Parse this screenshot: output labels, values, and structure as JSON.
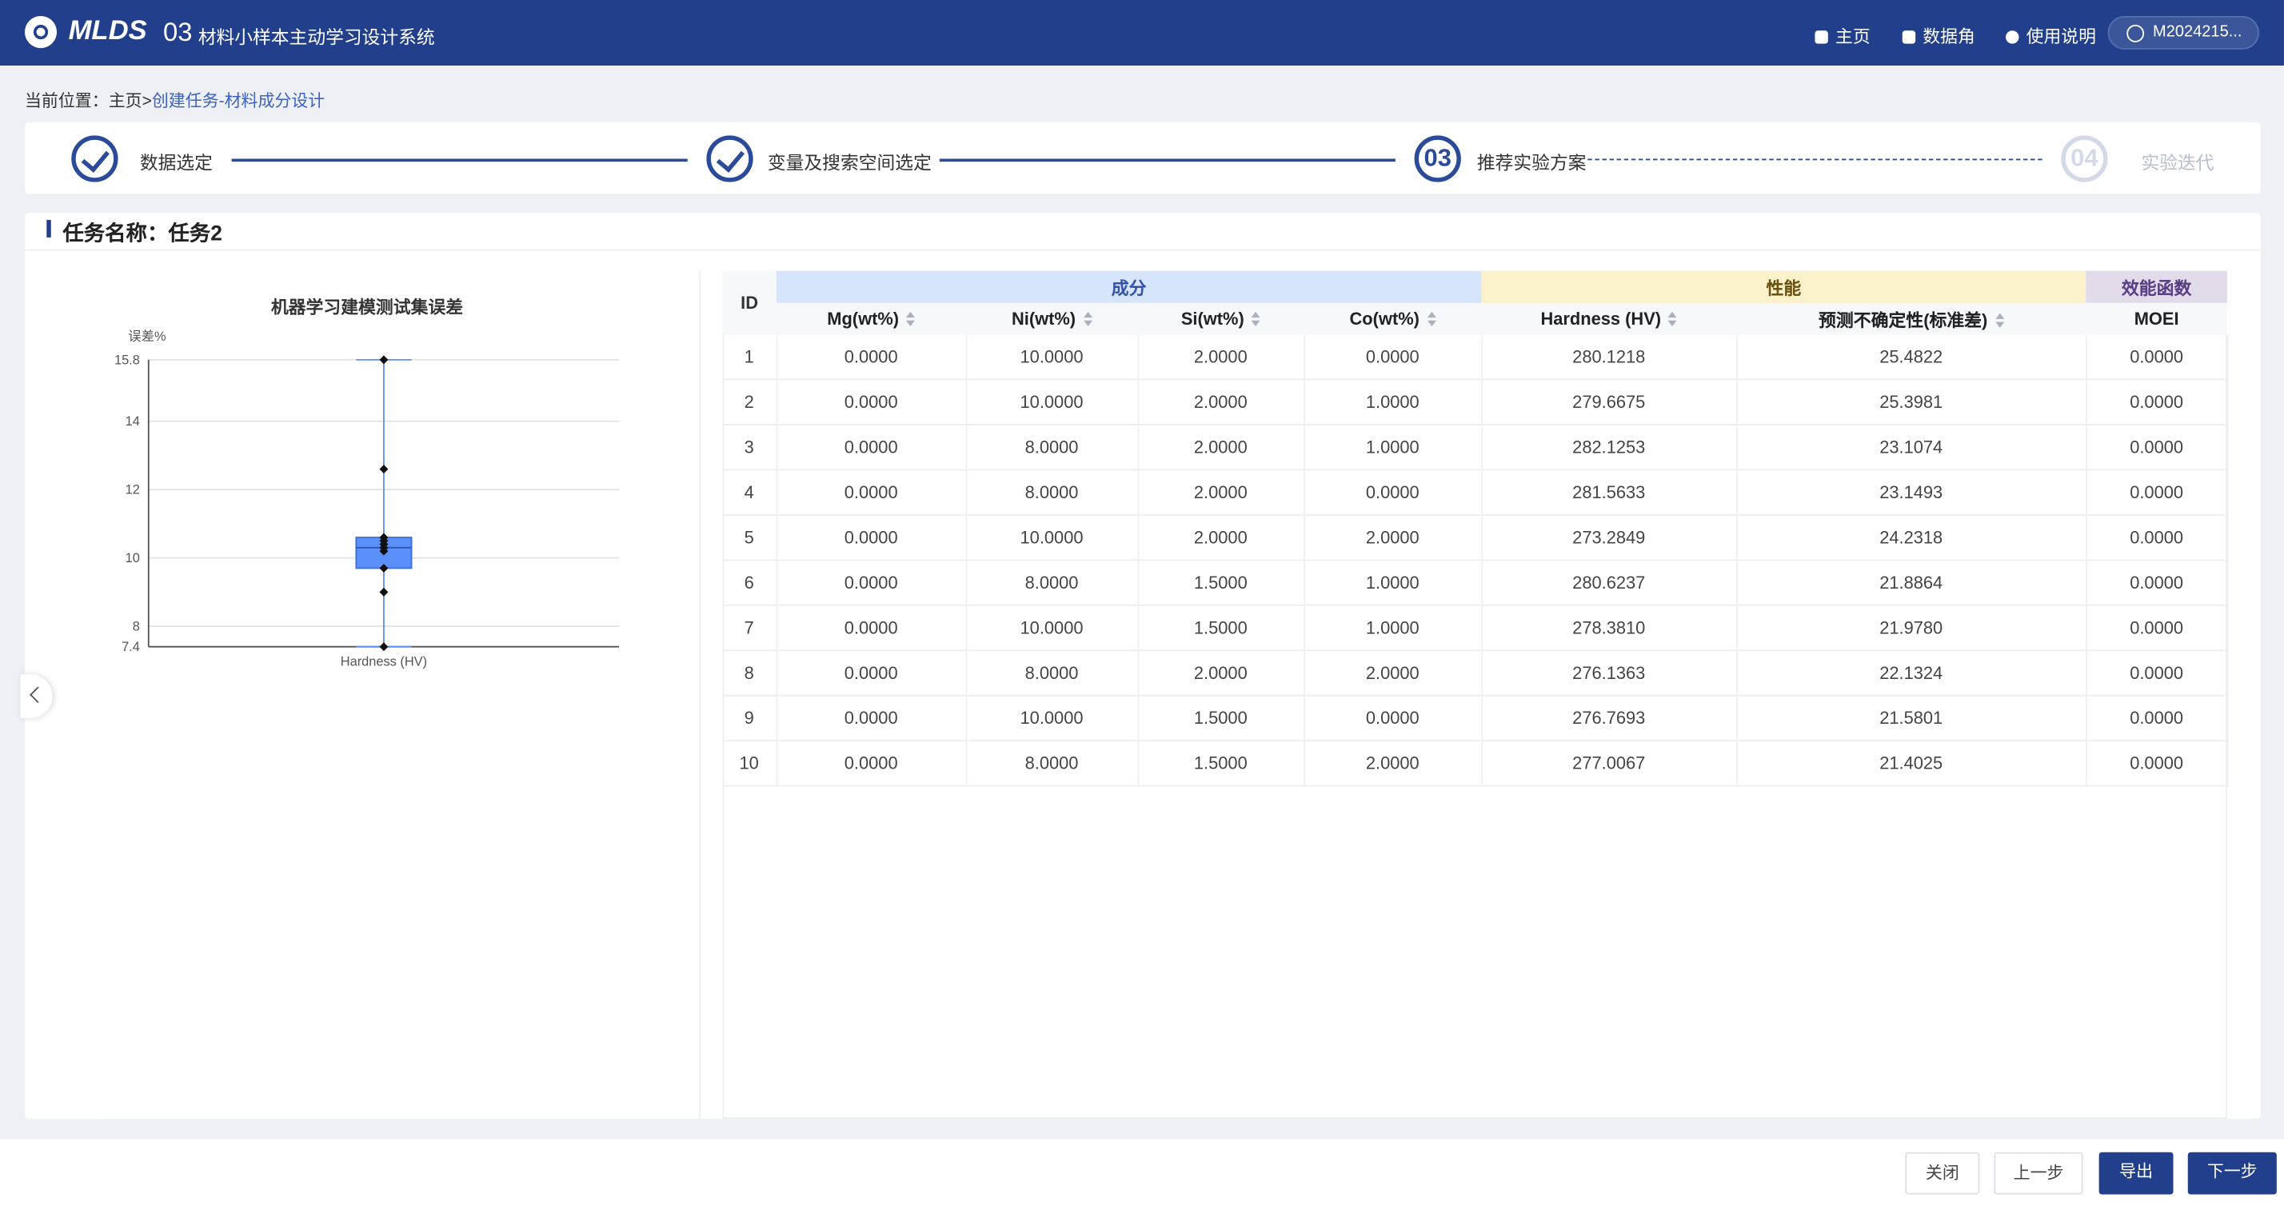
{
  "header": {
    "logo": "MLDS",
    "number": "03",
    "title": "材料小样本主动学习设计系统",
    "nav": [
      "主页",
      "数据角",
      "使用说明"
    ],
    "user": "M2024215..."
  },
  "breadcrumb": {
    "label": "当前位置：",
    "items": [
      "主页",
      "创建任务-材料成分设计"
    ],
    "separator": ">"
  },
  "steps": [
    {
      "label": "数据选定"
    },
    {
      "label": "变量及搜索空间选定"
    },
    {
      "number": "03",
      "label": "推荐实验方案"
    },
    {
      "number": "04",
      "label": "实验迭代"
    }
  ],
  "task": {
    "title": "任务名称：任务2"
  },
  "chart_data": {
    "type": "box",
    "title": "机器学习建模测试集误差",
    "y_label": "误差%",
    "categories": [
      "Hardness (HV)"
    ],
    "color": "#5b8ff9",
    "boxes": [
      {
        "min": 7.4,
        "q1": 9.7,
        "median": 10.3,
        "q3": 10.6,
        "max": 15.8,
        "points": [
          15.8,
          12.6,
          10.6,
          10.5,
          10.4,
          10.3,
          10.2,
          9.7,
          9.0,
          7.4
        ]
      }
    ],
    "ylim": [
      7.4,
      15.8
    ],
    "yticks": [
      7.4,
      8,
      10,
      12,
      14,
      15.8
    ],
    "grid": true
  },
  "table": {
    "id_header": "ID",
    "groups": [
      {
        "label": "成分",
        "columns": [
          "Mg(wt%)",
          "Ni(wt%)",
          "Si(wt%)",
          "Co(wt%)"
        ]
      },
      {
        "label": "性能",
        "columns": [
          "Hardness (HV)",
          "预测不确定性(标准差)"
        ]
      },
      {
        "label": "效能函数",
        "columns": [
          "MOEI"
        ]
      }
    ],
    "rows": [
      [
        "1",
        "0.0000",
        "10.0000",
        "2.0000",
        "0.0000",
        "280.1218",
        "25.4822",
        "0.0000"
      ],
      [
        "2",
        "0.0000",
        "10.0000",
        "2.0000",
        "1.0000",
        "279.6675",
        "25.3981",
        "0.0000"
      ],
      [
        "3",
        "0.0000",
        "8.0000",
        "2.0000",
        "1.0000",
        "282.1253",
        "23.1074",
        "0.0000"
      ],
      [
        "4",
        "0.0000",
        "8.0000",
        "2.0000",
        "0.0000",
        "281.5633",
        "23.1493",
        "0.0000"
      ],
      [
        "5",
        "0.0000",
        "10.0000",
        "2.0000",
        "2.0000",
        "273.2849",
        "24.2318",
        "0.0000"
      ],
      [
        "6",
        "0.0000",
        "8.0000",
        "1.5000",
        "1.0000",
        "280.6237",
        "21.8864",
        "0.0000"
      ],
      [
        "7",
        "0.0000",
        "10.0000",
        "1.5000",
        "1.0000",
        "278.3810",
        "21.9780",
        "0.0000"
      ],
      [
        "8",
        "0.0000",
        "8.0000",
        "2.0000",
        "2.0000",
        "276.1363",
        "22.1324",
        "0.0000"
      ],
      [
        "9",
        "0.0000",
        "10.0000",
        "1.5000",
        "0.0000",
        "276.7693",
        "21.5801",
        "0.0000"
      ],
      [
        "10",
        "0.0000",
        "8.0000",
        "1.5000",
        "2.0000",
        "277.0067",
        "21.4025",
        "0.0000"
      ]
    ]
  },
  "buttons": [
    "关闭",
    "上一步",
    "导出",
    "下一步"
  ]
}
